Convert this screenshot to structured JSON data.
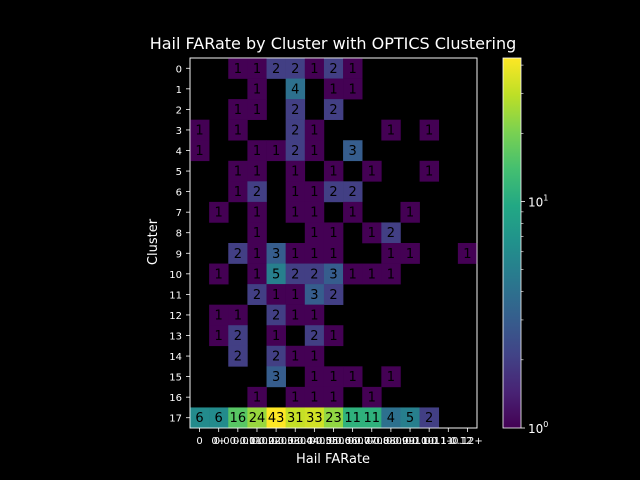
{
  "chart_data": {
    "type": "heatmap",
    "title": "Hail FARate by Cluster with OPTICS Clustering",
    "xlabel": "Hail FARate",
    "ylabel": "Cluster",
    "y_categories": [
      "0",
      "1",
      "2",
      "3",
      "4",
      "5",
      "6",
      "7",
      "8",
      "9",
      "10",
      "11",
      "12",
      "13",
      "14",
      "15",
      "16",
      "17"
    ],
    "x_categories": [
      "0",
      "0+",
      "0.00-0.01",
      "0.01-0.02",
      "0.02-0.03",
      "0.03-0.04",
      "0.04-0.05",
      "0.05-0.06",
      "0.06-0.07",
      "0.07-0.08",
      "0.08-0.09",
      "0.09-0.10",
      "0.10-0.11",
      "0.11-0.12",
      "0.12+"
    ],
    "x_tick_display": [
      "0",
      "0+",
      "0.00-0.01",
      "0.01-0.02",
      "0.02-0.03",
      "0.03-0.04",
      "0.04-0.05",
      "0.05-0.06",
      "0.06-0.07",
      "0.07-0.08",
      "0.08-0.09",
      "0.09-0.10",
      "0.10-0.11",
      "0.11-0.12",
      "0.12+"
    ],
    "values": [
      [
        null,
        null,
        1,
        1,
        2,
        2,
        1,
        2,
        1,
        null,
        null,
        null,
        null,
        null,
        null
      ],
      [
        null,
        null,
        null,
        1,
        null,
        4,
        null,
        1,
        1,
        null,
        null,
        null,
        null,
        null,
        null
      ],
      [
        null,
        null,
        1,
        1,
        null,
        2,
        null,
        2,
        null,
        null,
        null,
        null,
        null,
        null,
        null
      ],
      [
        1,
        null,
        1,
        null,
        null,
        2,
        1,
        null,
        null,
        null,
        1,
        null,
        1,
        null,
        null
      ],
      [
        1,
        null,
        null,
        1,
        1,
        2,
        1,
        null,
        3,
        null,
        null,
        null,
        null,
        null,
        null
      ],
      [
        null,
        null,
        1,
        1,
        null,
        1,
        null,
        1,
        null,
        1,
        null,
        null,
        1,
        null,
        null
      ],
      [
        null,
        null,
        1,
        2,
        null,
        1,
        1,
        2,
        2,
        null,
        null,
        null,
        null,
        null,
        null
      ],
      [
        null,
        1,
        null,
        1,
        null,
        1,
        1,
        null,
        1,
        null,
        null,
        1,
        null,
        null,
        null
      ],
      [
        null,
        null,
        null,
        1,
        null,
        null,
        1,
        1,
        null,
        1,
        2,
        null,
        null,
        null,
        null
      ],
      [
        null,
        null,
        2,
        1,
        3,
        1,
        1,
        1,
        null,
        null,
        1,
        1,
        null,
        null,
        1
      ],
      [
        null,
        1,
        null,
        1,
        5,
        2,
        2,
        3,
        1,
        1,
        1,
        null,
        null,
        null,
        null
      ],
      [
        null,
        null,
        null,
        2,
        1,
        1,
        3,
        2,
        null,
        null,
        null,
        null,
        null,
        null,
        null
      ],
      [
        null,
        1,
        1,
        null,
        2,
        1,
        1,
        null,
        null,
        null,
        null,
        null,
        null,
        null,
        null
      ],
      [
        null,
        1,
        2,
        null,
        1,
        null,
        2,
        1,
        null,
        null,
        null,
        null,
        null,
        null,
        null
      ],
      [
        null,
        null,
        2,
        null,
        2,
        1,
        1,
        null,
        null,
        null,
        null,
        null,
        null,
        null,
        null
      ],
      [
        null,
        null,
        null,
        null,
        3,
        null,
        1,
        1,
        1,
        null,
        1,
        null,
        null,
        null,
        null
      ],
      [
        null,
        null,
        null,
        1,
        null,
        1,
        1,
        1,
        null,
        1,
        null,
        null,
        null,
        null,
        null
      ],
      [
        6,
        6,
        16,
        24,
        43,
        31,
        33,
        23,
        11,
        11,
        4,
        5,
        2,
        null,
        null
      ]
    ],
    "colorbar": {
      "scale": "log",
      "min": 1,
      "max": 43,
      "colormap": "viridis",
      "tick_labels": [
        "10^0",
        "10^1"
      ]
    }
  }
}
